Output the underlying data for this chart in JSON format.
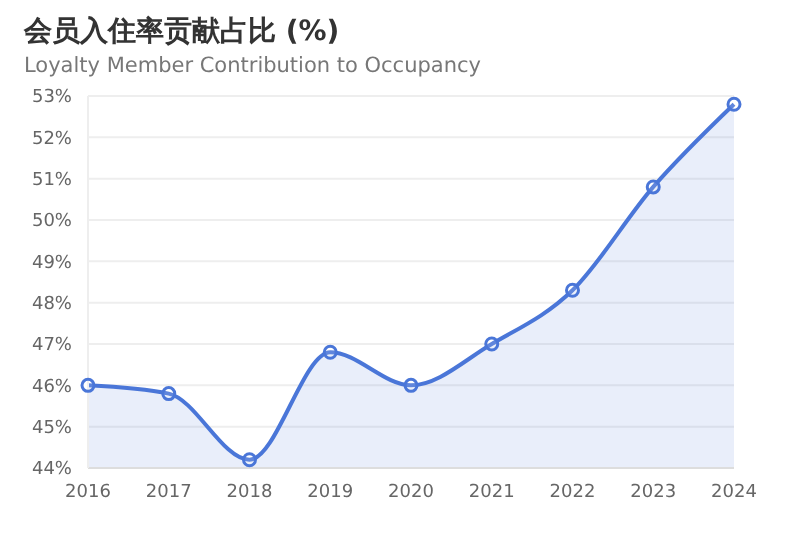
{
  "chart_data": {
    "type": "area",
    "title": "会员入住率贡献占比 (%)",
    "subtitle": "Loyalty Member Contribution to Occupancy",
    "categories": [
      "2016",
      "2017",
      "2018",
      "2019",
      "2020",
      "2021",
      "2022",
      "2023",
      "2024"
    ],
    "series": [
      {
        "color": "#4a76d8",
        "values": [
          46.0,
          45.8,
          44.2,
          46.8,
          46.0,
          47.0,
          48.3,
          50.8,
          52.8
        ]
      }
    ],
    "ylim": [
      44,
      53
    ],
    "yticks": [
      {
        "value": 44,
        "label": "44%"
      },
      {
        "value": 45,
        "label": "45%"
      },
      {
        "value": 46,
        "label": "46%"
      },
      {
        "value": 47,
        "label": "47%"
      },
      {
        "value": 48,
        "label": "48%"
      },
      {
        "value": 49,
        "label": "49%"
      },
      {
        "value": 50,
        "label": "50%"
      },
      {
        "value": 51,
        "label": "51%"
      },
      {
        "value": 52,
        "label": "52%"
      },
      {
        "value": 53,
        "label": "53%"
      }
    ],
    "grid": "y",
    "marker": "circle",
    "line_style": "solid",
    "legend": false
  }
}
